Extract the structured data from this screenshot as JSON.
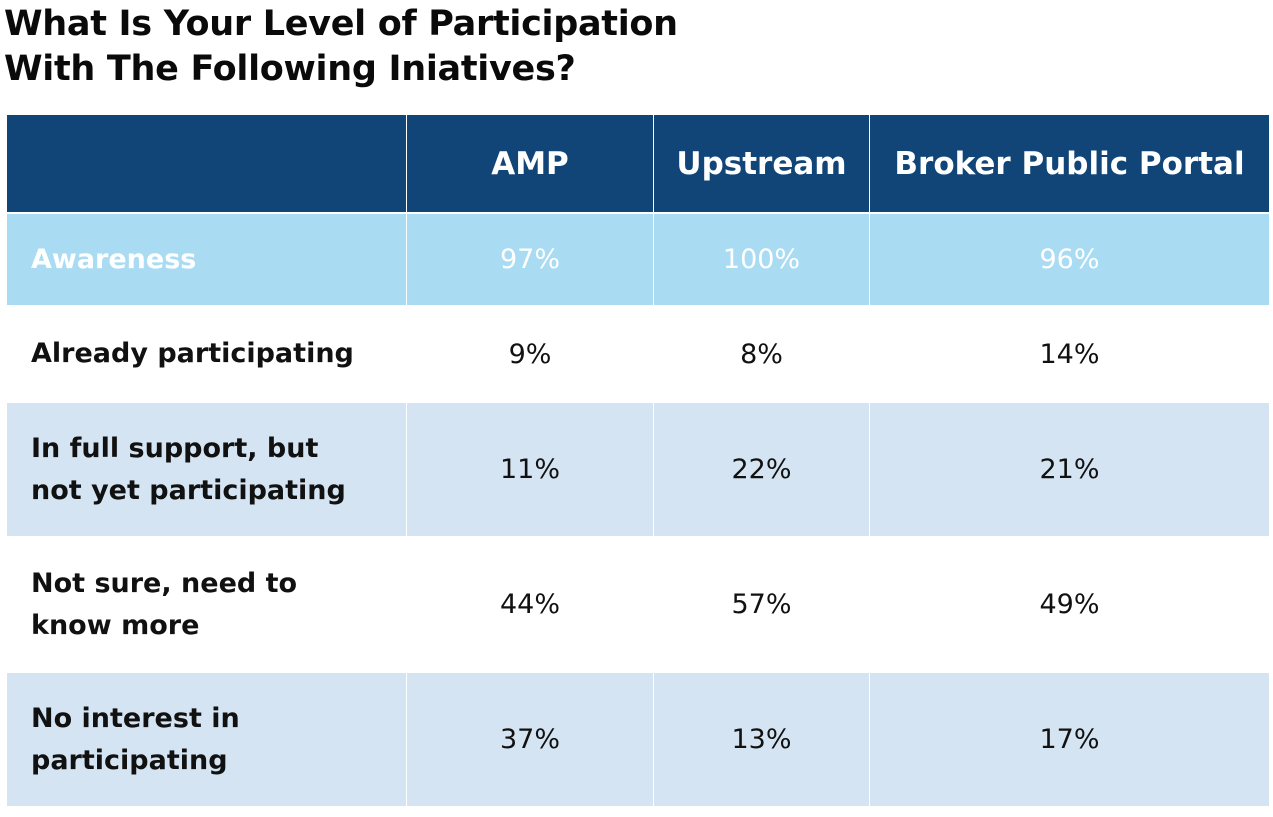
{
  "title_lines": [
    "What Is Your Level of Participation",
    "With The Following Iniatives?"
  ],
  "chart_data": {
    "type": "table",
    "title": "What Is Your Level of Participation With The Following Iniatives?",
    "columns": [
      "",
      "AMP",
      "Upstream",
      "Broker Public Portal"
    ],
    "rows": [
      {
        "label": "Awareness",
        "values": [
          "97%",
          "100%",
          "96%"
        ]
      },
      {
        "label": "Already participating",
        "values": [
          "9%",
          "8%",
          "14%"
        ]
      },
      {
        "label_lines": [
          "In full support, but",
          "not yet participating"
        ],
        "values": [
          "11%",
          "22%",
          "21%"
        ]
      },
      {
        "label_lines": [
          "Not sure, need to",
          "know more"
        ],
        "values": [
          "44%",
          "57%",
          "49%"
        ]
      },
      {
        "label_lines": [
          "No interest in",
          "participating"
        ],
        "values": [
          "37%",
          "13%",
          "17%"
        ]
      }
    ]
  },
  "colors": {
    "header_bg": "#114577",
    "awareness_bg": "#a9dcf3",
    "alt_row_bg": "#d4e4f2"
  }
}
